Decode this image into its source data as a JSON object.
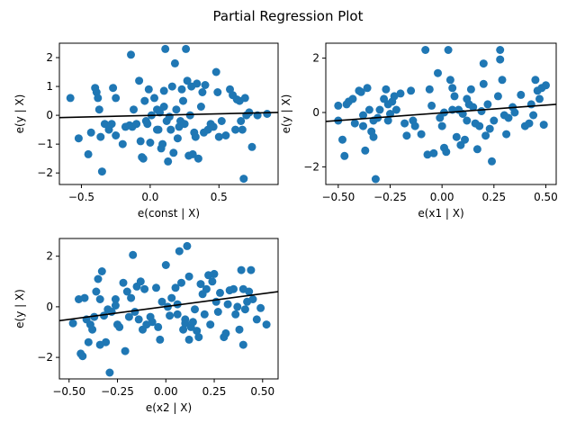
{
  "figure": {
    "title": "Partial Regression Plot"
  },
  "style": {
    "point_color": "#1f77b4",
    "line_color": "#000000"
  },
  "chart_data": [
    {
      "type": "scatter",
      "xlabel": "e(const | X)",
      "ylabel": "e(y | X)",
      "xlim": [
        -0.66,
        0.93
      ],
      "ylim": [
        -2.4,
        2.5
      ],
      "xticks": [
        -0.5,
        0.0,
        0.5
      ],
      "xtick_labels": [
        "−0.5",
        "0.0",
        "0.5"
      ],
      "yticks": [
        -2,
        -1,
        0,
        1,
        2
      ],
      "ytick_labels": [
        "−2",
        "−1",
        "0",
        "1",
        "2"
      ],
      "fit_line": {
        "x": [
          -0.66,
          0.93
        ],
        "y": [
          -0.08,
          0.1
        ]
      },
      "points": [
        [
          -0.58,
          0.6
        ],
        [
          -0.52,
          -0.8
        ],
        [
          -0.45,
          -1.35
        ],
        [
          -0.43,
          -0.6
        ],
        [
          -0.4,
          0.95
        ],
        [
          -0.39,
          0.8
        ],
        [
          -0.38,
          0.6
        ],
        [
          -0.37,
          0.2
        ],
        [
          -0.36,
          -0.75
        ],
        [
          -0.35,
          -1.95
        ],
        [
          -0.33,
          -0.3
        ],
        [
          -0.3,
          -0.5
        ],
        [
          -0.28,
          -0.3
        ],
        [
          -0.27,
          0.95
        ],
        [
          -0.25,
          0.6
        ],
        [
          -0.25,
          -0.7
        ],
        [
          -0.2,
          -1.0
        ],
        [
          -0.18,
          -0.4
        ],
        [
          -0.15,
          -0.35
        ],
        [
          -0.14,
          2.1
        ],
        [
          -0.13,
          -0.4
        ],
        [
          -0.12,
          0.2
        ],
        [
          -0.1,
          -0.3
        ],
        [
          -0.08,
          1.2
        ],
        [
          -0.07,
          -0.9
        ],
        [
          -0.06,
          -1.45
        ],
        [
          -0.05,
          -1.5
        ],
        [
          -0.04,
          0.5
        ],
        [
          -0.03,
          -0.2
        ],
        [
          -0.02,
          -0.3
        ],
        [
          -0.01,
          0.9
        ],
        [
          0.0,
          -0.95
        ],
        [
          0.01,
          0.0
        ],
        [
          0.03,
          0.6
        ],
        [
          0.05,
          0.2
        ],
        [
          0.05,
          -0.5
        ],
        [
          0.06,
          -0.5
        ],
        [
          0.07,
          0.1
        ],
        [
          0.08,
          -1.15
        ],
        [
          0.09,
          -1.0
        ],
        [
          0.1,
          0.85
        ],
        [
          0.1,
          0.3
        ],
        [
          0.11,
          2.3
        ],
        [
          0.12,
          -0.2
        ],
        [
          0.13,
          -1.6
        ],
        [
          0.14,
          -0.05
        ],
        [
          0.15,
          -0.5
        ],
        [
          0.16,
          1.0
        ],
        [
          0.17,
          -1.3
        ],
        [
          0.18,
          1.8
        ],
        [
          0.19,
          0.2
        ],
        [
          0.2,
          -0.8
        ],
        [
          0.21,
          -0.4
        ],
        [
          0.22,
          -0.2
        ],
        [
          0.23,
          0.9
        ],
        [
          0.24,
          0.5
        ],
        [
          0.25,
          -0.3
        ],
        [
          0.26,
          2.3
        ],
        [
          0.27,
          1.2
        ],
        [
          0.28,
          -1.4
        ],
        [
          0.29,
          0.0
        ],
        [
          0.3,
          1.0
        ],
        [
          0.31,
          -1.35
        ],
        [
          0.32,
          -0.6
        ],
        [
          0.33,
          -0.75
        ],
        [
          0.34,
          1.1
        ],
        [
          0.35,
          -1.5
        ],
        [
          0.37,
          0.3
        ],
        [
          0.38,
          0.8
        ],
        [
          0.39,
          -0.6
        ],
        [
          0.4,
          1.05
        ],
        [
          0.42,
          -0.5
        ],
        [
          0.44,
          -0.3
        ],
        [
          0.46,
          -0.4
        ],
        [
          0.48,
          1.5
        ],
        [
          0.49,
          0.8
        ],
        [
          0.5,
          -0.75
        ],
        [
          0.52,
          -0.2
        ],
        [
          0.55,
          -0.7
        ],
        [
          0.58,
          0.9
        ],
        [
          0.6,
          0.7
        ],
        [
          0.62,
          -0.5
        ],
        [
          0.63,
          0.55
        ],
        [
          0.65,
          0.5
        ],
        [
          0.66,
          -0.2
        ],
        [
          0.67,
          -0.5
        ],
        [
          0.68,
          -2.2
        ],
        [
          0.69,
          0.6
        ],
        [
          0.7,
          0.0
        ],
        [
          0.72,
          0.1
        ],
        [
          0.74,
          -1.1
        ],
        [
          0.78,
          0.0
        ],
        [
          0.85,
          0.05
        ]
      ]
    },
    {
      "type": "scatter",
      "xlabel": "e(x1 | X)",
      "ylabel": "e(y | X)",
      "xlim": [
        -0.56,
        0.55
      ],
      "ylim": [
        -2.65,
        2.55
      ],
      "xticks": [
        -0.5,
        -0.25,
        0.0,
        0.25,
        0.5
      ],
      "xtick_labels": [
        "−0.50",
        "−0.25",
        "0.00",
        "0.25",
        "0.50"
      ],
      "yticks": [
        -2,
        0,
        2
      ],
      "ytick_labels": [
        "−2",
        "0",
        "2"
      ],
      "fit_line": {
        "x": [
          -0.56,
          0.55
        ],
        "y": [
          -0.33,
          0.3
        ]
      },
      "points": [
        [
          -0.5,
          0.25
        ],
        [
          -0.5,
          -0.3
        ],
        [
          -0.48,
          -1.0
        ],
        [
          -0.47,
          -1.6
        ],
        [
          -0.46,
          0.3
        ],
        [
          -0.45,
          0.4
        ],
        [
          -0.43,
          0.5
        ],
        [
          -0.4,
          0.8
        ],
        [
          -0.39,
          0.75
        ],
        [
          -0.38,
          -0.1
        ],
        [
          -0.38,
          -0.5
        ],
        [
          -0.37,
          -1.4
        ],
        [
          -0.36,
          0.9
        ],
        [
          -0.35,
          0.1
        ],
        [
          -0.34,
          -0.7
        ],
        [
          -0.33,
          -0.3
        ],
        [
          -0.33,
          -0.9
        ],
        [
          -0.32,
          -2.45
        ],
        [
          -0.31,
          -0.2
        ],
        [
          -0.3,
          0.1
        ],
        [
          -0.28,
          0.5
        ],
        [
          -0.27,
          0.85
        ],
        [
          -0.26,
          0.3
        ],
        [
          -0.25,
          -0.05
        ],
        [
          -0.24,
          0.4
        ],
        [
          -0.23,
          0.6
        ],
        [
          -0.22,
          0.1
        ],
        [
          -0.2,
          0.7
        ],
        [
          -0.18,
          -0.4
        ],
        [
          -0.17,
          -0.85
        ],
        [
          -0.15,
          0.8
        ],
        [
          -0.14,
          -0.3
        ],
        [
          -0.13,
          -0.5
        ],
        [
          -0.1,
          -0.8
        ],
        [
          -0.08,
          2.3
        ],
        [
          -0.07,
          -1.55
        ],
        [
          -0.06,
          0.85
        ],
        [
          -0.05,
          0.25
        ],
        [
          -0.04,
          -1.5
        ],
        [
          -0.02,
          1.45
        ],
        [
          -0.01,
          -0.2
        ],
        [
          0.0,
          -0.5
        ],
        [
          0.01,
          -1.3
        ],
        [
          0.02,
          -1.45
        ],
        [
          0.03,
          2.3
        ],
        [
          0.04,
          1.2
        ],
        [
          0.05,
          0.9
        ],
        [
          0.06,
          0.6
        ],
        [
          0.07,
          -0.9
        ],
        [
          0.08,
          0.1
        ],
        [
          0.09,
          -1.2
        ],
        [
          0.1,
          -0.05
        ],
        [
          0.11,
          -1.0
        ],
        [
          0.12,
          -0.3
        ],
        [
          0.13,
          0.3
        ],
        [
          0.14,
          0.85
        ],
        [
          0.15,
          0.2
        ],
        [
          0.16,
          -0.4
        ],
        [
          0.17,
          -1.35
        ],
        [
          0.18,
          -0.5
        ],
        [
          0.19,
          0.05
        ],
        [
          0.2,
          1.8
        ],
        [
          0.21,
          -0.85
        ],
        [
          0.22,
          0.3
        ],
        [
          0.23,
          -0.6
        ],
        [
          0.24,
          -1.8
        ],
        [
          0.25,
          -0.3
        ],
        [
          0.27,
          0.6
        ],
        [
          0.28,
          2.3
        ],
        [
          0.28,
          1.95
        ],
        [
          0.29,
          1.2
        ],
        [
          0.3,
          -0.1
        ],
        [
          0.31,
          -0.8
        ],
        [
          0.32,
          -0.2
        ],
        [
          0.35,
          0.0
        ],
        [
          0.38,
          0.65
        ],
        [
          0.4,
          -0.5
        ],
        [
          0.42,
          -0.4
        ],
        [
          0.44,
          -0.1
        ],
        [
          0.45,
          1.2
        ],
        [
          0.46,
          0.8
        ],
        [
          0.47,
          0.5
        ],
        [
          0.48,
          0.9
        ],
        [
          0.49,
          -0.45
        ],
        [
          0.5,
          1.0
        ],
        [
          0.2,
          1.05
        ],
        [
          0.01,
          0.0
        ],
        [
          -0.26,
          -0.3
        ],
        [
          0.12,
          0.5
        ],
        [
          0.34,
          0.2
        ],
        [
          -0.42,
          -0.4
        ],
        [
          0.43,
          0.3
        ],
        [
          0.05,
          0.1
        ]
      ]
    },
    {
      "type": "scatter",
      "xlabel": "e(x2 | X)",
      "ylabel": "e(y | X)",
      "xlim": [
        -0.55,
        0.58
      ],
      "ylim": [
        -2.85,
        2.7
      ],
      "xticks": [
        -0.5,
        -0.25,
        0.0,
        0.25,
        0.5
      ],
      "xtick_labels": [
        "−0.50",
        "−0.25",
        "0.00",
        "0.25",
        "0.50"
      ],
      "yticks": [
        -2,
        0,
        2
      ],
      "ytick_labels": [
        "−2",
        "0",
        "2"
      ],
      "fit_line": {
        "x": [
          -0.55,
          0.58
        ],
        "y": [
          -0.55,
          0.6
        ]
      },
      "points": [
        [
          -0.48,
          -0.65
        ],
        [
          -0.45,
          0.3
        ],
        [
          -0.44,
          -1.85
        ],
        [
          -0.43,
          -1.95
        ],
        [
          -0.42,
          0.35
        ],
        [
          -0.41,
          -0.5
        ],
        [
          -0.4,
          -1.4
        ],
        [
          -0.39,
          -0.7
        ],
        [
          -0.38,
          -0.9
        ],
        [
          -0.37,
          -0.4
        ],
        [
          -0.36,
          0.6
        ],
        [
          -0.35,
          1.1
        ],
        [
          -0.34,
          0.3
        ],
        [
          -0.34,
          -1.5
        ],
        [
          -0.33,
          1.4
        ],
        [
          -0.32,
          -0.35
        ],
        [
          -0.31,
          -1.4
        ],
        [
          -0.3,
          -0.1
        ],
        [
          -0.29,
          -2.6
        ],
        [
          -0.28,
          -0.2
        ],
        [
          -0.26,
          0.3
        ],
        [
          -0.25,
          -0.7
        ],
        [
          -0.24,
          -0.8
        ],
        [
          -0.22,
          0.95
        ],
        [
          -0.21,
          -1.75
        ],
        [
          -0.2,
          0.6
        ],
        [
          -0.19,
          -0.4
        ],
        [
          -0.18,
          0.35
        ],
        [
          -0.17,
          2.05
        ],
        [
          -0.16,
          -0.2
        ],
        [
          -0.15,
          0.8
        ],
        [
          -0.14,
          -0.5
        ],
        [
          -0.13,
          1.0
        ],
        [
          -0.12,
          -0.9
        ],
        [
          -0.11,
          0.7
        ],
        [
          -0.1,
          -0.7
        ],
        [
          -0.08,
          -0.4
        ],
        [
          -0.07,
          -0.6
        ],
        [
          -0.05,
          0.75
        ],
        [
          -0.04,
          -0.8
        ],
        [
          -0.03,
          -1.3
        ],
        [
          -0.02,
          0.2
        ],
        [
          0.0,
          1.65
        ],
        [
          0.01,
          0.0
        ],
        [
          0.02,
          -0.35
        ],
        [
          0.03,
          0.35
        ],
        [
          0.05,
          0.75
        ],
        [
          0.06,
          -0.3
        ],
        [
          0.07,
          2.2
        ],
        [
          0.08,
          0.95
        ],
        [
          0.09,
          -0.9
        ],
        [
          0.1,
          -0.5
        ],
        [
          0.1,
          -0.65
        ],
        [
          0.11,
          2.4
        ],
        [
          0.12,
          1.2
        ],
        [
          0.12,
          -1.3
        ],
        [
          0.13,
          -0.8
        ],
        [
          0.14,
          -0.6
        ],
        [
          0.15,
          -0.1
        ],
        [
          0.16,
          -0.95
        ],
        [
          0.17,
          -1.2
        ],
        [
          0.18,
          0.9
        ],
        [
          0.19,
          0.5
        ],
        [
          0.2,
          -0.3
        ],
        [
          0.21,
          0.7
        ],
        [
          0.22,
          1.25
        ],
        [
          0.23,
          -0.7
        ],
        [
          0.24,
          1.0
        ],
        [
          0.25,
          1.3
        ],
        [
          0.26,
          0.2
        ],
        [
          0.27,
          -0.2
        ],
        [
          0.28,
          0.55
        ],
        [
          0.3,
          -1.2
        ],
        [
          0.31,
          -1.05
        ],
        [
          0.33,
          0.65
        ],
        [
          0.35,
          0.7
        ],
        [
          0.36,
          -0.3
        ],
        [
          0.37,
          0.0
        ],
        [
          0.38,
          -0.9
        ],
        [
          0.39,
          1.45
        ],
        [
          0.4,
          -1.5
        ],
        [
          0.4,
          0.7
        ],
        [
          0.41,
          -0.1
        ],
        [
          0.42,
          0.2
        ],
        [
          0.43,
          0.6
        ],
        [
          0.44,
          1.45
        ],
        [
          0.45,
          0.3
        ],
        [
          0.47,
          -0.5
        ],
        [
          0.49,
          -0.05
        ],
        [
          0.52,
          -0.7
        ],
        [
          0.06,
          0.1
        ],
        [
          -0.26,
          0.05
        ],
        [
          0.32,
          0.1
        ]
      ]
    }
  ]
}
